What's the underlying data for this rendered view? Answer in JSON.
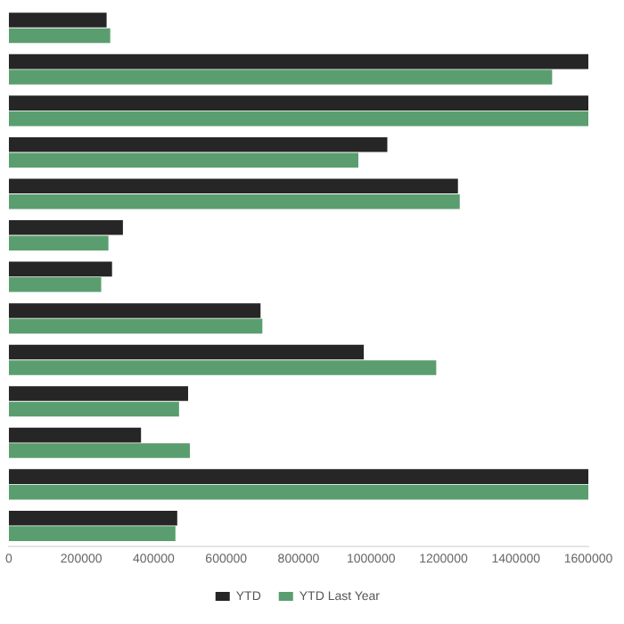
{
  "chart_data": {
    "type": "bar",
    "orientation": "horizontal",
    "categories": [
      null,
      null,
      null,
      null,
      null,
      null,
      null,
      null,
      null,
      null,
      null,
      null,
      null
    ],
    "series": [
      {
        "name": "YTD",
        "color": "#262626",
        "values": [
          270000,
          1600000,
          1600000,
          1045000,
          1240000,
          315000,
          285000,
          695000,
          980000,
          495000,
          365000,
          1600000,
          465000
        ]
      },
      {
        "name": "YTD Last Year",
        "color": "#5a9e6f",
        "values": [
          280000,
          1500000,
          1600000,
          965000,
          1245000,
          275000,
          255000,
          700000,
          1180000,
          470000,
          500000,
          1600000,
          460000
        ]
      }
    ],
    "xlim": [
      0,
      1600000
    ],
    "xticks": [
      0,
      200000,
      400000,
      600000,
      800000,
      1000000,
      1200000,
      1400000,
      1600000
    ],
    "grid": false,
    "legend": "bottom"
  }
}
